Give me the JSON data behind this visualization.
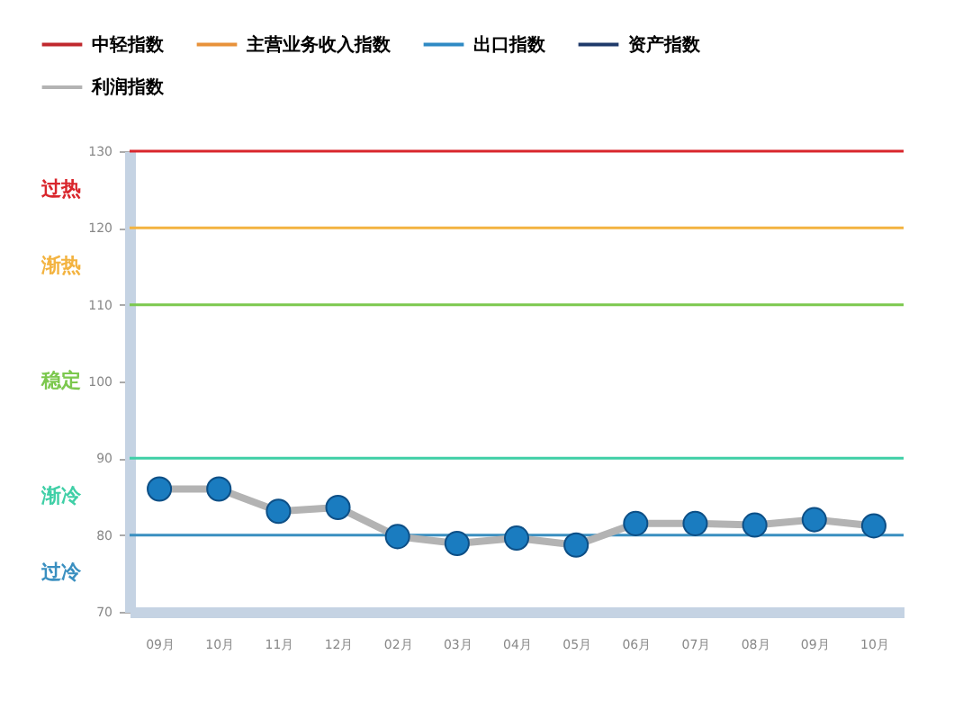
{
  "chart_data": {
    "type": "line",
    "categories": [
      "09月",
      "10月",
      "11月",
      "12月",
      "02月",
      "03月",
      "04月",
      "05月",
      "06月",
      "07月",
      "08月",
      "09月",
      "10月"
    ],
    "series": [
      {
        "name": "中轻指数",
        "color": "#c0282d",
        "values": [
          null,
          null,
          null,
          null,
          null,
          null,
          null,
          null,
          null,
          null,
          null,
          null,
          null
        ]
      },
      {
        "name": "主营业务收入指数",
        "color": "#e8923a",
        "values": [
          null,
          null,
          null,
          null,
          null,
          null,
          null,
          null,
          null,
          null,
          null,
          null,
          null
        ]
      },
      {
        "name": "出口指数",
        "color": "#2f8ac4",
        "values": [
          null,
          null,
          null,
          null,
          null,
          null,
          null,
          null,
          null,
          null,
          null,
          null,
          null
        ]
      },
      {
        "name": "资产指数",
        "color": "#1f3a6a",
        "values": [
          null,
          null,
          null,
          null,
          null,
          null,
          null,
          null,
          null,
          null,
          null,
          null,
          null
        ]
      },
      {
        "name": "利润指数",
        "color": "#b3b3b3",
        "values": [
          86,
          86,
          83.1,
          83.6,
          79.8,
          78.9,
          79.6,
          78.7,
          81.5,
          81.5,
          81.3,
          82,
          81.2
        ]
      }
    ],
    "ylim": [
      70,
      130
    ],
    "yticks": [
      70,
      80,
      90,
      100,
      110,
      120,
      130
    ],
    "grid": false,
    "legend": "top",
    "marker": "circle",
    "line_style": "solid",
    "ref_lines": [
      {
        "axis": "y",
        "value": 130,
        "color": "#d9262c"
      },
      {
        "axis": "y",
        "value": 120,
        "color": "#f3b340"
      },
      {
        "axis": "y",
        "value": 110,
        "color": "#7cc84e"
      },
      {
        "axis": "y",
        "value": 90,
        "color": "#3fcfa6"
      },
      {
        "axis": "y",
        "value": 80,
        "color": "#3a8fc0"
      }
    ],
    "annotations": [
      "过热",
      "渐热",
      "稳定",
      "渐冷",
      "过冷"
    ]
  }
}
